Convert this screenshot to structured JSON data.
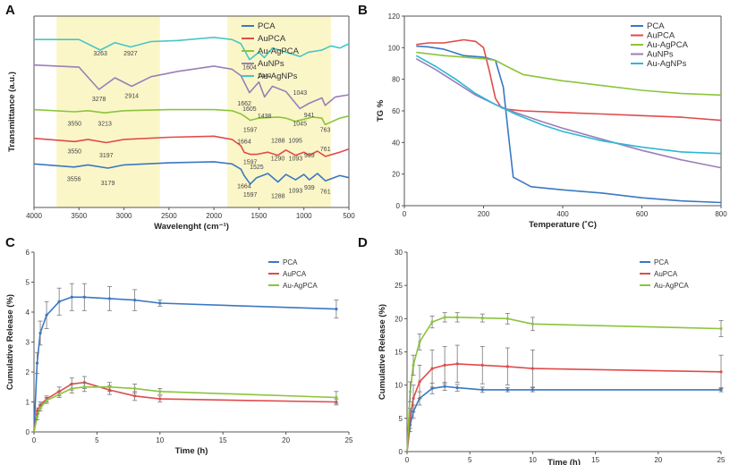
{
  "chart_data": [
    {
      "panel": "A",
      "type": "line",
      "title": "",
      "xlabel": "Wavelenght (cm⁻¹)",
      "ylabel": "Transmittance (a.u.)",
      "xlim": [
        4000,
        500
      ],
      "x_ticks": [
        "4000",
        "3500",
        "3000",
        "2500",
        "2000",
        "1500",
        "1000",
        "500"
      ],
      "x_tick_values": [
        4000,
        3500,
        3000,
        2500,
        2000,
        1500,
        1000,
        500
      ],
      "highlight_bands": [
        [
          3750,
          2600
        ],
        [
          1850,
          700
        ]
      ],
      "legend": [
        "PCA",
        "AuPCA",
        "Au-AgPCA",
        "AuNPs",
        "Au-AgNPs"
      ],
      "series": [
        {
          "name": "Au-AgNPs",
          "color": "#48c6c6",
          "x": [
            4000,
            3500,
            3263,
            3100,
            2927,
            2700,
            2400,
            2000,
            1800,
            1700,
            1604,
            1500,
            1440,
            1350,
            1200,
            1043,
            950,
            800,
            700,
            600,
            500
          ],
          "y": [
            6.9,
            6.9,
            6.4,
            6.75,
            6.55,
            6.8,
            6.85,
            7.0,
            6.9,
            6.7,
            5.95,
            6.3,
            6.05,
            6.5,
            6.3,
            6.1,
            6.3,
            6.4,
            6.6,
            6.5,
            6.7
          ]
        },
        {
          "name": "AuNPs",
          "color": "#9a7fb8",
          "x": [
            4000,
            3500,
            3278,
            3100,
            2914,
            2700,
            2400,
            2000,
            1800,
            1700,
            1605,
            1500,
            1438,
            1350,
            1200,
            1045,
            941,
            800,
            763,
            650,
            500
          ],
          "y": [
            5.7,
            5.6,
            4.55,
            5.1,
            4.7,
            5.15,
            5.4,
            5.65,
            5.5,
            5.2,
            4.4,
            4.9,
            4.2,
            4.7,
            4.45,
            3.65,
            3.9,
            4.15,
            3.8,
            4.2,
            4.3
          ]
        },
        {
          "name": "Au-AgPCA",
          "color": "#8cc43c",
          "x": [
            4000,
            3550,
            3400,
            3213,
            3000,
            2500,
            2000,
            1800,
            1700,
            1662,
            1597,
            1500,
            1288,
            1200,
            1095,
            1000,
            900,
            800,
            763,
            600,
            500
          ],
          "y": [
            3.6,
            3.5,
            3.55,
            3.45,
            3.55,
            3.6,
            3.6,
            3.55,
            3.4,
            3.3,
            3.1,
            3.2,
            3.25,
            3.2,
            3.05,
            3.15,
            3.25,
            3.2,
            2.9,
            3.2,
            3.3
          ]
        },
        {
          "name": "AuPCA",
          "color": "#e04b4b",
          "x": [
            4000,
            3550,
            3400,
            3197,
            3000,
            2500,
            2000,
            1800,
            1700,
            1664,
            1597,
            1525,
            1400,
            1290,
            1200,
            1093,
            1000,
            939,
            850,
            761,
            600,
            500
          ],
          "y": [
            2.25,
            2.1,
            2.2,
            2.05,
            2.2,
            2.3,
            2.35,
            2.2,
            1.9,
            1.6,
            1.5,
            1.5,
            1.6,
            1.45,
            1.7,
            1.45,
            1.6,
            1.45,
            1.65,
            1.4,
            1.6,
            1.75
          ]
        },
        {
          "name": "PCA",
          "color": "#3a78c2",
          "x": [
            4000,
            3556,
            3400,
            3179,
            3000,
            2500,
            2000,
            1800,
            1700,
            1664,
            1597,
            1525,
            1400,
            1288,
            1200,
            1093,
            1000,
            939,
            850,
            761,
            600,
            500
          ],
          "y": [
            1.05,
            0.9,
            1.0,
            0.85,
            1.0,
            1.1,
            1.15,
            1.05,
            0.8,
            0.5,
            0.1,
            0.4,
            0.6,
            0.2,
            0.55,
            0.3,
            0.55,
            0.3,
            0.6,
            0.25,
            0.5,
            0.4
          ]
        }
      ],
      "annotations": [
        {
          "text": "3263",
          "x": 3263,
          "y": 6.15
        },
        {
          "text": "2927",
          "x": 2927,
          "y": 6.15
        },
        {
          "text": "1604",
          "x": 1604,
          "y": 5.5
        },
        {
          "text": "1440",
          "x": 1440,
          "y": 5.1
        },
        {
          "text": "3278",
          "x": 3278,
          "y": 4.0
        },
        {
          "text": "2914",
          "x": 2914,
          "y": 4.15
        },
        {
          "text": "1605",
          "x": 1605,
          "y": 3.55
        },
        {
          "text": "1438",
          "x": 1438,
          "y": 3.2
        },
        {
          "text": "1043",
          "x": 1043,
          "y": 4.3
        },
        {
          "text": "941",
          "x": 941,
          "y": 3.25
        },
        {
          "text": "1045",
          "x": 1045,
          "y": 2.85
        },
        {
          "text": "3550",
          "x": 3550,
          "y": 2.85
        },
        {
          "text": "3213",
          "x": 3213,
          "y": 2.85
        },
        {
          "text": "1662",
          "x": 1662,
          "y": 3.8
        },
        {
          "text": "1597",
          "x": 1597,
          "y": 2.55
        },
        {
          "text": "1288",
          "x": 1288,
          "y": 2.05
        },
        {
          "text": "1095",
          "x": 1095,
          "y": 2.05
        },
        {
          "text": "763",
          "x": 763,
          "y": 2.55
        },
        {
          "text": "3550",
          "x": 3550,
          "y": 1.55
        },
        {
          "text": "3197",
          "x": 3197,
          "y": 1.35
        },
        {
          "text": "1664",
          "x": 1664,
          "y": 2.0
        },
        {
          "text": "1597",
          "x": 1597,
          "y": 1.05
        },
        {
          "text": "1525",
          "x": 1525,
          "y": 0.8
        },
        {
          "text": "1290",
          "x": 1290,
          "y": 1.2
        },
        {
          "text": "1093",
          "x": 1093,
          "y": 1.2
        },
        {
          "text": "939",
          "x": 939,
          "y": 1.35
        },
        {
          "text": "761",
          "x": 761,
          "y": 1.65
        },
        {
          "text": "3556",
          "x": 3556,
          "y": 0.25
        },
        {
          "text": "3179",
          "x": 3179,
          "y": 0.05
        },
        {
          "text": "1664",
          "x": 1664,
          "y": -0.1
        },
        {
          "text": "1597",
          "x": 1597,
          "y": -0.5
        },
        {
          "text": "1288",
          "x": 1288,
          "y": -0.55
        },
        {
          "text": "1093",
          "x": 1093,
          "y": -0.3
        },
        {
          "text": "939",
          "x": 939,
          "y": -0.15
        },
        {
          "text": "761",
          "x": 761,
          "y": -0.35
        }
      ],
      "ylim": [
        -1.0,
        8.0
      ]
    },
    {
      "panel": "B",
      "type": "line",
      "title": "",
      "xlabel": "Temperature (˚C)",
      "ylabel": "TG %",
      "xlim": [
        0,
        800
      ],
      "ylim": [
        0,
        120
      ],
      "x_ticks": [
        0,
        200,
        400,
        600,
        800
      ],
      "y_ticks": [
        0,
        20,
        40,
        60,
        80,
        100,
        120
      ],
      "legend": [
        "PCA",
        "AuPCA",
        "Au-AgPCA",
        "AuNPs",
        "Au-AgNPs"
      ],
      "series": [
        {
          "name": "PCA",
          "color": "#3a78c2",
          "x": [
            30,
            60,
            100,
            150,
            200,
            230,
            250,
            265,
            275,
            290,
            320,
            400,
            500,
            600,
            700,
            800
          ],
          "y": [
            101,
            100.5,
            99,
            95,
            94,
            92,
            75,
            40,
            18,
            16,
            12,
            10,
            8,
            5,
            3,
            2
          ]
        },
        {
          "name": "AuPCA",
          "color": "#e04b4b",
          "x": [
            30,
            60,
            100,
            150,
            180,
            200,
            215,
            230,
            245,
            260,
            300,
            400,
            500,
            600,
            700,
            800
          ],
          "y": [
            102,
            103,
            103,
            105,
            104,
            100,
            85,
            68,
            62,
            61,
            60,
            59,
            58,
            57,
            56,
            54
          ]
        },
        {
          "name": "Au-AgPCA",
          "color": "#8cc43c",
          "x": [
            30,
            100,
            150,
            200,
            230,
            260,
            300,
            350,
            400,
            500,
            600,
            700,
            800
          ],
          "y": [
            97,
            95,
            94,
            93,
            92,
            88,
            83,
            81,
            79,
            76,
            73,
            71,
            70
          ]
        },
        {
          "name": "AuNPs",
          "color": "#9a7fb8",
          "x": [
            30,
            80,
            130,
            180,
            230,
            280,
            350,
            400,
            500,
            600,
            700,
            800
          ],
          "y": [
            93,
            86,
            78,
            70,
            64,
            59,
            53,
            49,
            42,
            35,
            29,
            24
          ]
        },
        {
          "name": "Au-AgNPs",
          "color": "#2bb8d4",
          "x": [
            30,
            80,
            130,
            180,
            230,
            280,
            350,
            400,
            500,
            600,
            700,
            800
          ],
          "y": [
            95,
            88,
            80,
            71,
            64,
            58,
            51,
            47,
            41,
            37,
            34,
            33
          ]
        }
      ]
    },
    {
      "panel": "C",
      "type": "line",
      "title": "",
      "xlabel": "Time (h)",
      "ylabel": "Cumulative Release (%)",
      "xlim": [
        0,
        25
      ],
      "ylim": [
        0,
        6
      ],
      "x_ticks": [
        0,
        5,
        10,
        15,
        20,
        25
      ],
      "y_ticks": [
        0,
        1,
        2,
        3,
        4,
        5,
        6
      ],
      "legend": [
        "PCA",
        "AuPCA",
        "Au-AgPCA"
      ],
      "series": [
        {
          "name": "PCA",
          "color": "#3a78c2",
          "x": [
            0,
            0.25,
            0.5,
            1,
            2,
            3,
            4,
            6,
            8,
            10,
            24
          ],
          "y": [
            0,
            2.3,
            3.3,
            3.9,
            4.35,
            4.5,
            4.5,
            4.45,
            4.4,
            4.3,
            4.1
          ],
          "err": [
            0,
            0.35,
            0.4,
            0.45,
            0.45,
            0.45,
            0.45,
            0.4,
            0.35,
            0.1,
            0.3
          ]
        },
        {
          "name": "AuPCA",
          "color": "#e04b4b",
          "x": [
            0,
            0.25,
            0.5,
            1,
            2,
            3,
            4,
            6,
            8,
            10,
            24
          ],
          "y": [
            0,
            0.7,
            0.9,
            1.1,
            1.35,
            1.6,
            1.65,
            1.4,
            1.2,
            1.1,
            1.0
          ],
          "err": [
            0,
            0.1,
            0.1,
            0.1,
            0.15,
            0.2,
            0.2,
            0.15,
            0.15,
            0.1,
            0.1
          ]
        },
        {
          "name": "Au-AgPCA",
          "color": "#8cc43c",
          "x": [
            0,
            0.25,
            0.5,
            1,
            2,
            3,
            4,
            6,
            8,
            10,
            24
          ],
          "y": [
            0,
            0.5,
            0.8,
            1.05,
            1.25,
            1.45,
            1.5,
            1.5,
            1.45,
            1.35,
            1.15
          ],
          "err": [
            0,
            0.1,
            0.1,
            0.1,
            0.1,
            0.15,
            0.15,
            0.15,
            0.15,
            0.1,
            0.2
          ]
        }
      ]
    },
    {
      "panel": "D",
      "type": "line",
      "title": "",
      "xlabel": "Time (h)",
      "ylabel": "Cumulative Release (%)",
      "xlim": [
        0,
        25
      ],
      "ylim": [
        0,
        30
      ],
      "x_ticks": [
        0,
        5,
        10,
        15,
        20,
        25
      ],
      "y_ticks": [
        0,
        5,
        10,
        15,
        20,
        25,
        30
      ],
      "legend": [
        "PCA",
        "AuPCA",
        "Au-AgPCA"
      ],
      "series": [
        {
          "name": "PCA",
          "color": "#3a78c2",
          "x": [
            0,
            0.25,
            0.5,
            1,
            2,
            3,
            4,
            6,
            8,
            10,
            25
          ],
          "y": [
            0,
            4,
            6,
            8,
            9.5,
            9.8,
            9.6,
            9.3,
            9.3,
            9.3,
            9.3
          ],
          "err": [
            0,
            1,
            1,
            1,
            0.8,
            0.6,
            0.5,
            0.4,
            0.3,
            0.3,
            0.3
          ]
        },
        {
          "name": "AuPCA",
          "color": "#e04b4b",
          "x": [
            0,
            0.25,
            0.5,
            1,
            2,
            3,
            4,
            6,
            8,
            10,
            25
          ],
          "y": [
            0,
            5,
            8,
            10.5,
            12.5,
            13,
            13.2,
            13,
            12.8,
            12.5,
            12
          ],
          "err": [
            0,
            1.5,
            2,
            2.5,
            2.8,
            2.8,
            2.8,
            2.8,
            2.8,
            2.8,
            2.5
          ]
        },
        {
          "name": "Au-AgPCA",
          "color": "#8cc43c",
          "x": [
            0,
            0.25,
            0.5,
            1,
            2,
            3,
            4,
            6,
            8,
            10,
            25
          ],
          "y": [
            0,
            9,
            13,
            16.5,
            19.5,
            20.2,
            20.2,
            20.1,
            20,
            19.2,
            18.5
          ],
          "err": [
            0,
            1.5,
            1.5,
            1.2,
            0.9,
            0.7,
            0.7,
            0.6,
            0.8,
            1,
            1.2
          ]
        }
      ]
    }
  ],
  "panel_labels": [
    "A",
    "B",
    "C",
    "D"
  ]
}
